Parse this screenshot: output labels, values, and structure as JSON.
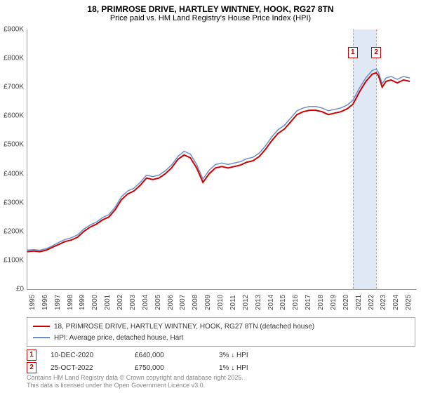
{
  "title_line1": "18, PRIMROSE DRIVE, HARTLEY WINTNEY, HOOK, RG27 8TN",
  "title_line2": "Price paid vs. HM Land Registry's House Price Index (HPI)",
  "chart": {
    "type": "line",
    "x_range": [
      1995,
      2026
    ],
    "y_range": [
      0,
      900000
    ],
    "y_ticks": [
      0,
      100000,
      200000,
      300000,
      400000,
      500000,
      600000,
      700000,
      800000,
      900000
    ],
    "y_tick_labels": [
      "£0",
      "£100K",
      "£200K",
      "£300K",
      "£400K",
      "£500K",
      "£600K",
      "£700K",
      "£800K",
      "£900K"
    ],
    "x_ticks": [
      1995,
      1996,
      1997,
      1998,
      1999,
      2000,
      2001,
      2002,
      2003,
      2004,
      2005,
      2006,
      2007,
      2008,
      2009,
      2010,
      2011,
      2012,
      2013,
      2014,
      2015,
      2016,
      2017,
      2018,
      2019,
      2020,
      2021,
      2022,
      2023,
      2024,
      2025
    ],
    "background_color": "#ffffff",
    "grid_color": "none",
    "highlight_band": {
      "x_start": 2020.95,
      "x_end": 2022.82,
      "color": "#e0e8f5"
    },
    "vlines": [
      {
        "x": 2020.95,
        "color": "#d88"
      },
      {
        "x": 2022.82,
        "color": "#d88"
      }
    ],
    "markers_on_plot": [
      {
        "label": "1",
        "x": 2020.95,
        "y": 800000
      },
      {
        "label": "2",
        "x": 2022.82,
        "y": 800000
      }
    ],
    "series": [
      {
        "name": "price_paid",
        "color": "#cc0000",
        "width": 2,
        "data": [
          [
            1995,
            130000
          ],
          [
            1995.5,
            132000
          ],
          [
            1996,
            130000
          ],
          [
            1996.5,
            135000
          ],
          [
            1997,
            145000
          ],
          [
            1997.5,
            155000
          ],
          [
            1998,
            165000
          ],
          [
            1998.5,
            170000
          ],
          [
            1999,
            180000
          ],
          [
            1999.5,
            200000
          ],
          [
            2000,
            215000
          ],
          [
            2000.5,
            225000
          ],
          [
            2001,
            240000
          ],
          [
            2001.5,
            250000
          ],
          [
            2002,
            275000
          ],
          [
            2002.5,
            310000
          ],
          [
            2003,
            330000
          ],
          [
            2003.5,
            340000
          ],
          [
            2004,
            360000
          ],
          [
            2004.5,
            385000
          ],
          [
            2005,
            380000
          ],
          [
            2005.5,
            385000
          ],
          [
            2006,
            400000
          ],
          [
            2006.5,
            420000
          ],
          [
            2007,
            450000
          ],
          [
            2007.5,
            465000
          ],
          [
            2008,
            455000
          ],
          [
            2008.5,
            420000
          ],
          [
            2009,
            370000
          ],
          [
            2009.5,
            400000
          ],
          [
            2010,
            420000
          ],
          [
            2010.5,
            425000
          ],
          [
            2011,
            420000
          ],
          [
            2011.5,
            425000
          ],
          [
            2012,
            430000
          ],
          [
            2012.5,
            440000
          ],
          [
            2013,
            445000
          ],
          [
            2013.5,
            460000
          ],
          [
            2014,
            485000
          ],
          [
            2014.5,
            515000
          ],
          [
            2015,
            540000
          ],
          [
            2015.5,
            555000
          ],
          [
            2016,
            580000
          ],
          [
            2016.5,
            605000
          ],
          [
            2017,
            615000
          ],
          [
            2017.5,
            620000
          ],
          [
            2018,
            620000
          ],
          [
            2018.5,
            615000
          ],
          [
            2019,
            605000
          ],
          [
            2019.5,
            610000
          ],
          [
            2020,
            615000
          ],
          [
            2020.5,
            625000
          ],
          [
            2020.95,
            640000
          ],
          [
            2021.5,
            685000
          ],
          [
            2022,
            720000
          ],
          [
            2022.5,
            745000
          ],
          [
            2022.82,
            750000
          ],
          [
            2023,
            740000
          ],
          [
            2023.3,
            700000
          ],
          [
            2023.6,
            720000
          ],
          [
            2024,
            725000
          ],
          [
            2024.5,
            715000
          ],
          [
            2025,
            725000
          ],
          [
            2025.5,
            720000
          ]
        ]
      },
      {
        "name": "hpi",
        "color": "#6a8fc9",
        "width": 1.5,
        "data": [
          [
            1995,
            135000
          ],
          [
            1995.5,
            137000
          ],
          [
            1996,
            135000
          ],
          [
            1996.5,
            140000
          ],
          [
            1997,
            150000
          ],
          [
            1997.5,
            162000
          ],
          [
            1998,
            172000
          ],
          [
            1998.5,
            178000
          ],
          [
            1999,
            188000
          ],
          [
            1999.5,
            208000
          ],
          [
            2000,
            222000
          ],
          [
            2000.5,
            232000
          ],
          [
            2001,
            248000
          ],
          [
            2001.5,
            258000
          ],
          [
            2002,
            284000
          ],
          [
            2002.5,
            320000
          ],
          [
            2003,
            340000
          ],
          [
            2003.5,
            350000
          ],
          [
            2004,
            370000
          ],
          [
            2004.5,
            395000
          ],
          [
            2005,
            390000
          ],
          [
            2005.5,
            395000
          ],
          [
            2006,
            410000
          ],
          [
            2006.5,
            430000
          ],
          [
            2007,
            460000
          ],
          [
            2007.5,
            478000
          ],
          [
            2008,
            468000
          ],
          [
            2008.5,
            432000
          ],
          [
            2009,
            382000
          ],
          [
            2009.5,
            412000
          ],
          [
            2010,
            432000
          ],
          [
            2010.5,
            437000
          ],
          [
            2011,
            432000
          ],
          [
            2011.5,
            437000
          ],
          [
            2012,
            442000
          ],
          [
            2012.5,
            452000
          ],
          [
            2013,
            457000
          ],
          [
            2013.5,
            472000
          ],
          [
            2014,
            497000
          ],
          [
            2014.5,
            528000
          ],
          [
            2015,
            553000
          ],
          [
            2015.5,
            568000
          ],
          [
            2016,
            593000
          ],
          [
            2016.5,
            618000
          ],
          [
            2017,
            628000
          ],
          [
            2017.5,
            633000
          ],
          [
            2018,
            633000
          ],
          [
            2018.5,
            628000
          ],
          [
            2019,
            618000
          ],
          [
            2019.5,
            623000
          ],
          [
            2020,
            628000
          ],
          [
            2020.5,
            638000
          ],
          [
            2020.95,
            654000
          ],
          [
            2021.5,
            698000
          ],
          [
            2022,
            733000
          ],
          [
            2022.5,
            758000
          ],
          [
            2022.82,
            762000
          ],
          [
            2023,
            752000
          ],
          [
            2023.3,
            712000
          ],
          [
            2023.6,
            732000
          ],
          [
            2024,
            737000
          ],
          [
            2024.5,
            727000
          ],
          [
            2025,
            737000
          ],
          [
            2025.5,
            732000
          ]
        ]
      }
    ]
  },
  "legend": {
    "items": [
      {
        "color": "#cc0000",
        "label": "18, PRIMROSE DRIVE, HARTLEY WINTNEY, HOOK, RG27 8TN (detached house)"
      },
      {
        "color": "#6a8fc9",
        "label": "HPI: Average price, detached house, Hart"
      }
    ]
  },
  "transactions": [
    {
      "marker": "1",
      "date": "10-DEC-2020",
      "price": "£640,000",
      "delta": "3% ↓ HPI"
    },
    {
      "marker": "2",
      "date": "25-OCT-2022",
      "price": "£750,000",
      "delta": "1% ↓ HPI"
    }
  ],
  "footer_line1": "Contains HM Land Registry data © Crown copyright and database right 2025.",
  "footer_line2": "This data is licensed under the Open Government Licence v3.0."
}
